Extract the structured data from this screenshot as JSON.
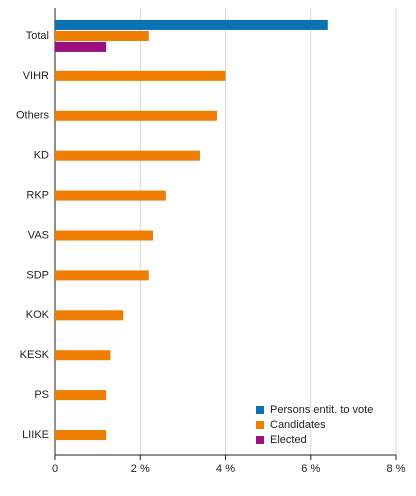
{
  "chart_data": {
    "type": "hbar",
    "categories": [
      "Total",
      "VIHR",
      "Others",
      "KD",
      "RKP",
      "VAS",
      "SDP",
      "KOK",
      "KESK",
      "PS",
      "LIIKE"
    ],
    "series": [
      {
        "name": "Persons entit. to vote",
        "color": "#0a72b0",
        "values": [
          6.4,
          null,
          null,
          null,
          null,
          null,
          null,
          null,
          null,
          null,
          null
        ]
      },
      {
        "name": "Candidates",
        "color": "#ef7d00",
        "values": [
          2.2,
          4.0,
          3.8,
          3.4,
          2.6,
          2.3,
          2.2,
          1.6,
          1.3,
          1.2,
          1.2
        ]
      },
      {
        "name": "Elected",
        "color": "#9b0f7e",
        "values": [
          1.2,
          null,
          null,
          null,
          null,
          null,
          null,
          null,
          null,
          null,
          null
        ]
      }
    ],
    "xlim": [
      0,
      8
    ],
    "xticks": [
      0,
      {
        "value": 2,
        "label": "2 %"
      },
      {
        "value": 4,
        "label": "4 %"
      },
      {
        "value": 6,
        "label": "6 %"
      },
      {
        "value": 8,
        "label": "8 %"
      }
    ],
    "grid": true,
    "legend": "lower-right"
  }
}
